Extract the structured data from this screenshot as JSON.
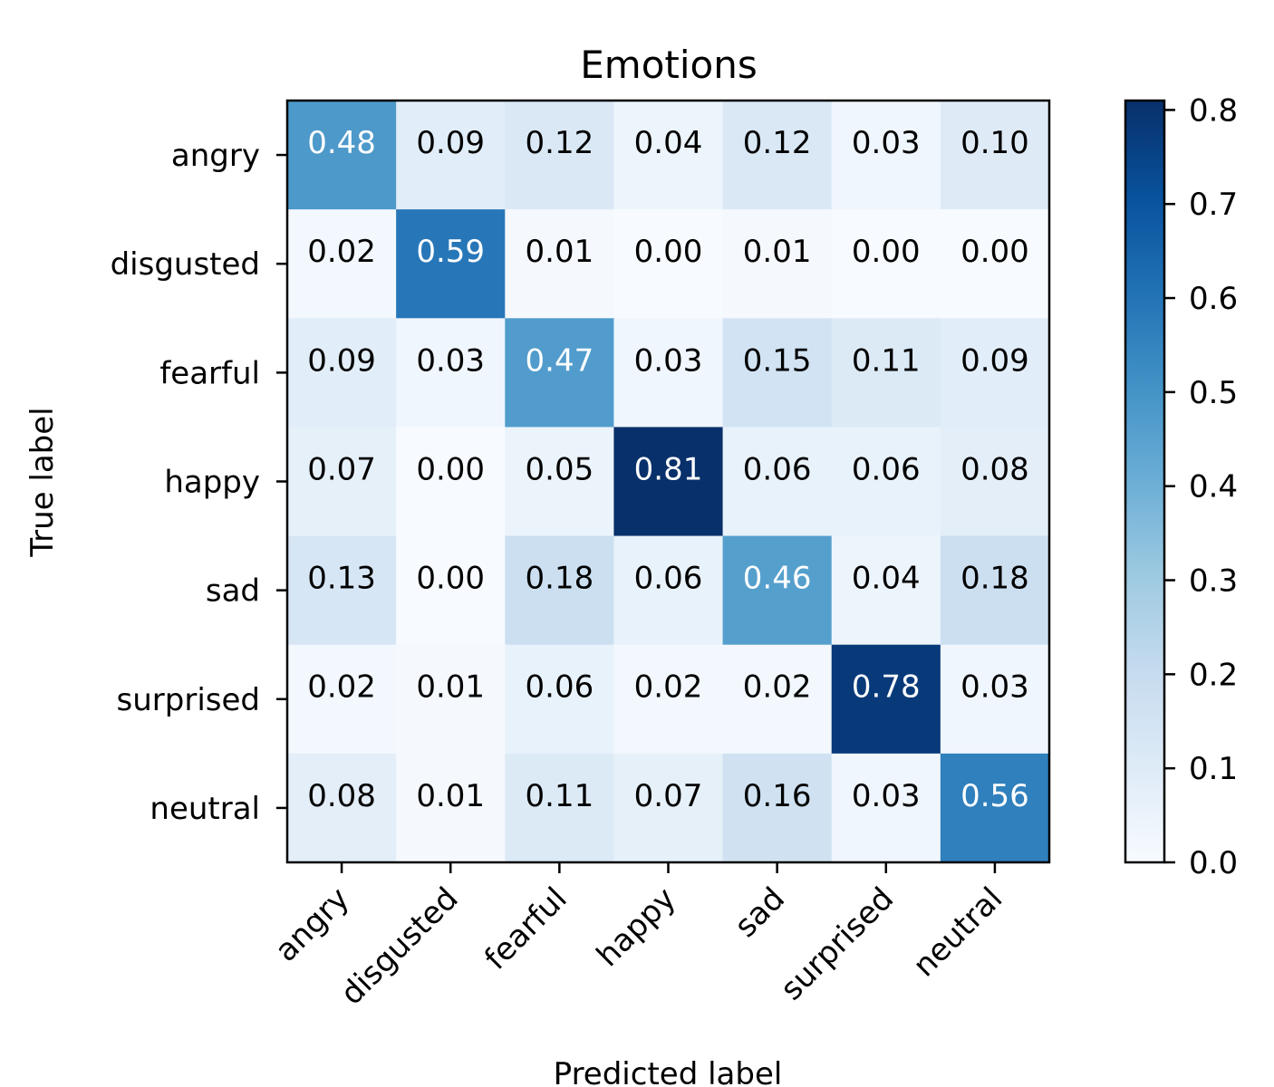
{
  "chart_data": {
    "type": "heatmap",
    "title": "Emotions",
    "xlabel": "Predicted label",
    "ylabel": "True label",
    "x_categories": [
      "angry",
      "disgusted",
      "fearful",
      "happy",
      "sad",
      "surprised",
      "neutral"
    ],
    "y_categories": [
      "angry",
      "disgusted",
      "fearful",
      "happy",
      "sad",
      "surprised",
      "neutral"
    ],
    "values": [
      [
        0.48,
        0.09,
        0.12,
        0.04,
        0.12,
        0.03,
        0.1
      ],
      [
        0.02,
        0.59,
        0.01,
        0.0,
        0.01,
        0.0,
        0.0
      ],
      [
        0.09,
        0.03,
        0.47,
        0.03,
        0.15,
        0.11,
        0.09
      ],
      [
        0.07,
        0.0,
        0.05,
        0.81,
        0.06,
        0.06,
        0.08
      ],
      [
        0.13,
        0.0,
        0.18,
        0.06,
        0.46,
        0.04,
        0.18
      ],
      [
        0.02,
        0.01,
        0.06,
        0.02,
        0.02,
        0.78,
        0.03
      ],
      [
        0.08,
        0.01,
        0.11,
        0.07,
        0.16,
        0.03,
        0.56
      ]
    ],
    "colormap": "Blues",
    "colorbar": {
      "range": [
        0.0,
        0.81
      ],
      "ticks": [
        0.0,
        0.1,
        0.2,
        0.3,
        0.4,
        0.5,
        0.6,
        0.7,
        0.8
      ],
      "tick_labels": [
        "0.0",
        "0.1",
        "0.2",
        "0.3",
        "0.4",
        "0.5",
        "0.6",
        "0.7",
        "0.8"
      ]
    },
    "grid": false
  }
}
